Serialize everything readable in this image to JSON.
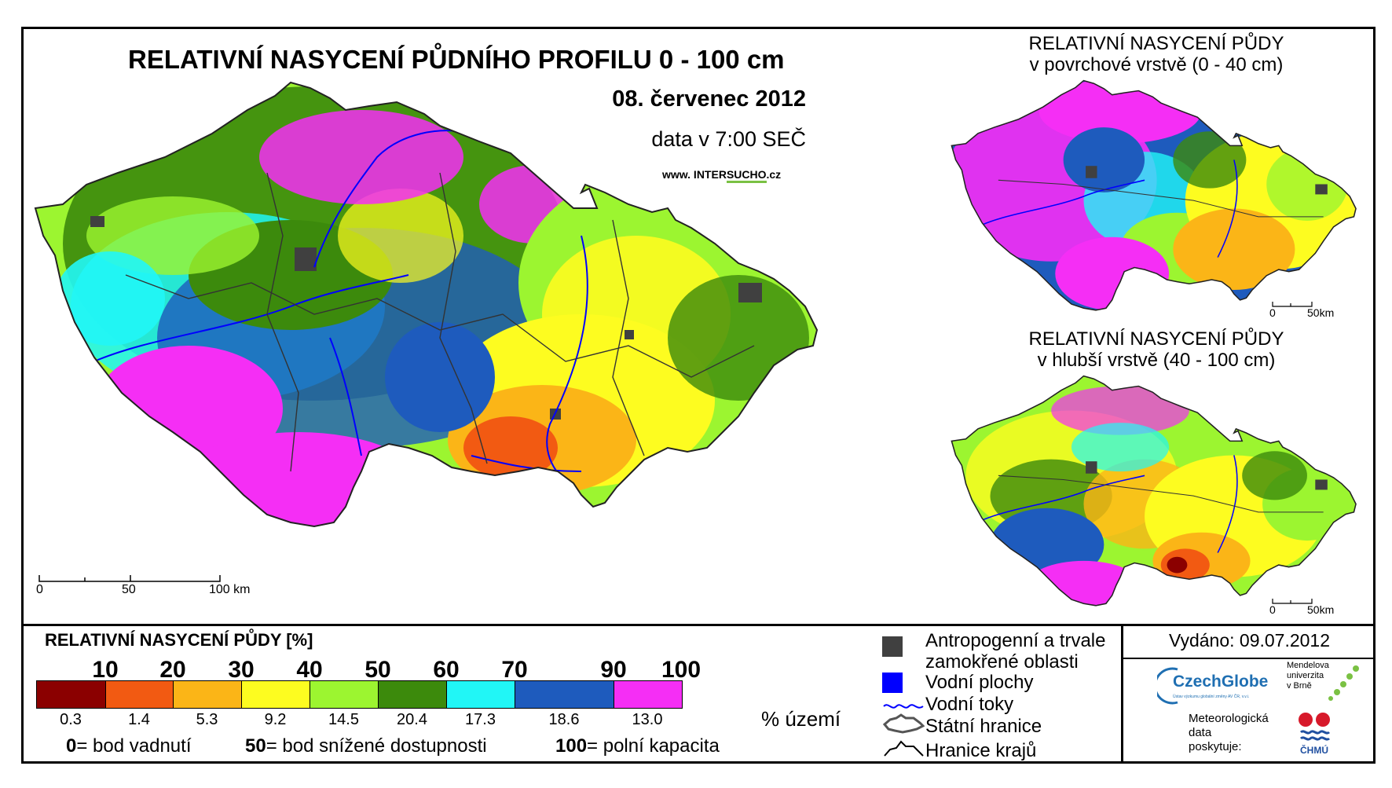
{
  "title": "RELATIVNÍ NASYCENÍ PŮDNÍHO PROFILU 0 - 100 cm",
  "date": "08. červenec 2012",
  "data_time": "data v 7:00 SEČ",
  "website": {
    "prefix": "www. INTER",
    "highlight": "SUCHO",
    "suffix": ".cz"
  },
  "top_right": {
    "line1": "RELATIVNÍ NASYCENÍ PŮDY",
    "line2": "v povrchové vrstvě (0 - 40 cm)"
  },
  "bottom_right": {
    "line1": "RELATIVNÍ NASYCENÍ PŮDY",
    "line2": "v hlubší vrstvě (40 - 100 cm)"
  },
  "main_scale": {
    "label_0": "0",
    "label_50": "50",
    "label_100": "100 km"
  },
  "small_scale": {
    "label_0": "0",
    "label_50": "50km"
  },
  "legend": {
    "title": "RELATIVNÍ NASYCENÍ PŮDY [%]",
    "ticks": [
      "10",
      "20",
      "30",
      "40",
      "50",
      "60",
      "70",
      "90",
      "100"
    ],
    "classes": [
      {
        "color": "#8b0000",
        "pct": "0.3"
      },
      {
        "color": "#f25a12",
        "pct": "1.4"
      },
      {
        "color": "#fbb517",
        "pct": "5.3"
      },
      {
        "color": "#fdfc20",
        "pct": "9.2"
      },
      {
        "color": "#9cf530",
        "pct": "14.5"
      },
      {
        "color": "#3c8a0c",
        "pct": "20.4"
      },
      {
        "color": "#21f6f6",
        "pct": "17.3"
      },
      {
        "color": "#1e5bbd",
        "pct": "18.6"
      },
      {
        "color": "#f52ef5",
        "pct": "13.0"
      }
    ],
    "unit": "% území",
    "definitions": [
      {
        "value": "0",
        "text": "= bod vadnutí"
      },
      {
        "value": "50",
        "text": "= bod snížené dostupnosti"
      },
      {
        "value": "100",
        "text": "= polní kapacita"
      }
    ]
  },
  "key": {
    "anthropogenic_line1": "Antropogenní a trvale",
    "anthropogenic_line2": "zamokřené oblasti",
    "anthropogenic_color": "#404040",
    "water_bodies": "Vodní plochy",
    "water_color": "#0000ff",
    "rivers": "Vodní toky",
    "border": "Státní hranice",
    "regions": "Hranice krajů"
  },
  "issued": "Vydáno: 09.07.2012",
  "logos": {
    "czechglobe": "CzechGlobe",
    "czechglobe_sub": "Ústav výzkumu globální změny AV ČR, v.v.i.",
    "mendel_line1": "Mendelova",
    "mendel_line2": "univerzita",
    "mendel_line3": "v Brně",
    "provider_line1": "Meteorologická",
    "provider_line2": "data",
    "provider_line3": "poskytuje:",
    "chmu": "ČHMÚ"
  }
}
